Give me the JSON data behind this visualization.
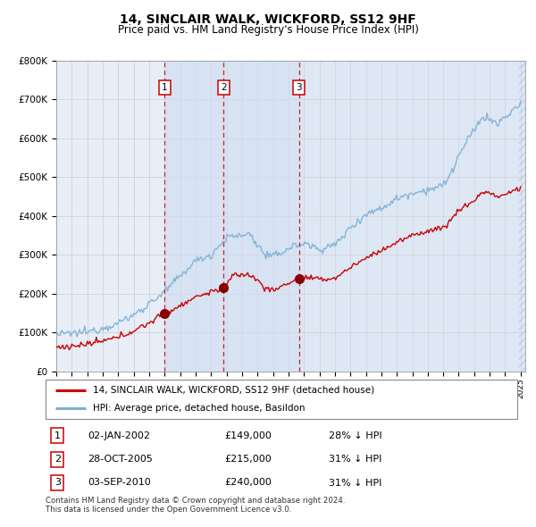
{
  "title": "14, SINCLAIR WALK, WICKFORD, SS12 9HF",
  "subtitle": "Price paid vs. HM Land Registry's House Price Index (HPI)",
  "legend_line1": "14, SINCLAIR WALK, WICKFORD, SS12 9HF (detached house)",
  "legend_line2": "HPI: Average price, detached house, Basildon",
  "transactions": [
    {
      "num": 1,
      "date": "02-JAN-2002",
      "price": 149000,
      "pct": "28% ↓ HPI",
      "x_year": 2002.01
    },
    {
      "num": 2,
      "date": "28-OCT-2005",
      "price": 215000,
      "pct": "31% ↓ HPI",
      "x_year": 2005.82
    },
    {
      "num": 3,
      "date": "03-SEP-2010",
      "price": 240000,
      "pct": "31% ↓ HPI",
      "x_year": 2010.67
    }
  ],
  "footer": "Contains HM Land Registry data © Crown copyright and database right 2024.\nThis data is licensed under the Open Government Licence v3.0.",
  "hpi_color": "#7bafd4",
  "price_color": "#cc0000",
  "marker_color": "#880000",
  "vline_color": "#cc0000",
  "grid_color": "#cccccc",
  "chart_bg": "#e8eef8",
  "span_color": "#d0ddf0",
  "ylim": [
    0,
    800000
  ],
  "xlim_start": 1995.0,
  "xlim_end": 2025.3,
  "hpi_anchors_x": [
    1995.0,
    1996.0,
    1997.0,
    1998.0,
    1999.0,
    2000.0,
    2001.0,
    2002.0,
    2003.0,
    2004.0,
    2005.0,
    2006.0,
    2007.0,
    2007.5,
    2008.0,
    2008.5,
    2009.0,
    2009.5,
    2010.0,
    2011.0,
    2012.0,
    2013.0,
    2014.0,
    2015.0,
    2016.0,
    2017.0,
    2018.0,
    2019.0,
    2020.0,
    2020.5,
    2021.0,
    2021.5,
    2022.0,
    2022.5,
    2023.0,
    2023.5,
    2024.0,
    2024.5,
    2025.0
  ],
  "hpi_anchors_y": [
    95000,
    98000,
    102000,
    112000,
    125000,
    145000,
    175000,
    205000,
    245000,
    285000,
    300000,
    345000,
    350000,
    355000,
    325000,
    300000,
    295000,
    305000,
    318000,
    330000,
    315000,
    325000,
    370000,
    405000,
    420000,
    445000,
    460000,
    468000,
    478000,
    510000,
    555000,
    590000,
    620000,
    655000,
    650000,
    635000,
    655000,
    670000,
    690000
  ],
  "price_anchors_x": [
    1995.0,
    1996.0,
    1997.0,
    1998.0,
    1999.0,
    2000.0,
    2001.0,
    2001.5,
    2002.01,
    2002.5,
    2003.0,
    2004.0,
    2005.0,
    2005.82,
    2006.0,
    2006.5,
    2007.0,
    2007.5,
    2008.0,
    2008.5,
    2009.0,
    2009.5,
    2010.0,
    2010.67,
    2011.0,
    2011.5,
    2012.0,
    2013.0,
    2014.0,
    2015.0,
    2016.0,
    2017.0,
    2018.0,
    2019.0,
    2020.0,
    2020.5,
    2021.0,
    2022.0,
    2022.5,
    2023.0,
    2023.5,
    2024.0,
    2024.5,
    2025.0
  ],
  "price_anchors_y": [
    62000,
    65000,
    70000,
    78000,
    88000,
    105000,
    125000,
    138000,
    149000,
    158000,
    170000,
    192000,
    205000,
    215000,
    225000,
    248000,
    250000,
    248000,
    235000,
    215000,
    208000,
    218000,
    228000,
    240000,
    242000,
    240000,
    236000,
    240000,
    268000,
    292000,
    312000,
    332000,
    350000,
    362000,
    370000,
    390000,
    415000,
    440000,
    460000,
    462000,
    448000,
    455000,
    465000,
    472000
  ]
}
